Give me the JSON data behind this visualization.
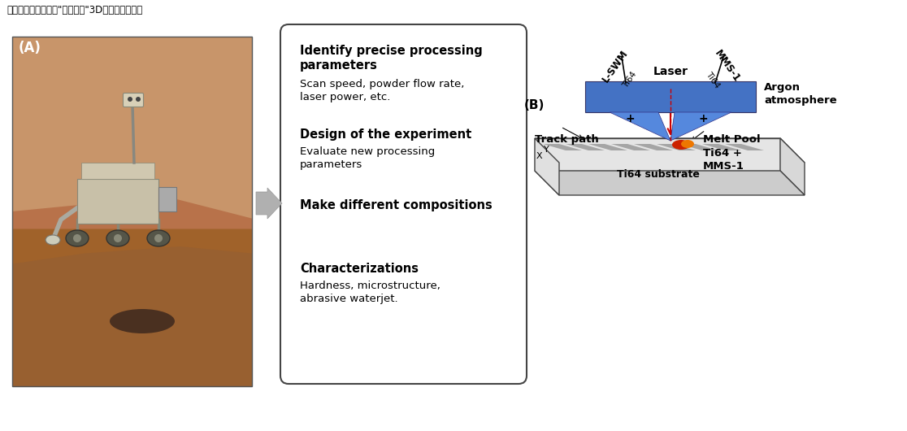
{
  "title": "宇航员未来或能实现\"就地取材\"3D打印工具和零件",
  "bg_color": "#ffffff",
  "box_steps": [
    {
      "bold": "Identify precise processing\nparameters",
      "normal": "Scan speed, powder flow rate,\nlaser power, etc."
    },
    {
      "bold": "Design of the experiment",
      "normal": "Evaluate new processing\nparameters"
    },
    {
      "bold": "Make different compositions",
      "normal": ""
    },
    {
      "bold": "Characterizations",
      "normal": "Hardness, microstructure,\nabrasive waterjet."
    }
  ],
  "label_A": "(A)",
  "label_B": "(B)",
  "arrow_color": "#909090",
  "box_border_color": "#444444",
  "blue_rect_color": "#4472C4",
  "substrate_top_color": "#f0f0f0",
  "substrate_front_color": "#e0e0e0",
  "substrate_right_color": "#d8d8d8",
  "track_color": "#aaaaaa",
  "melt_color1": "#cc2200",
  "melt_color2": "#dd6600",
  "laser_line_color": "#cc0000",
  "nozzle_color": "#3366bb"
}
